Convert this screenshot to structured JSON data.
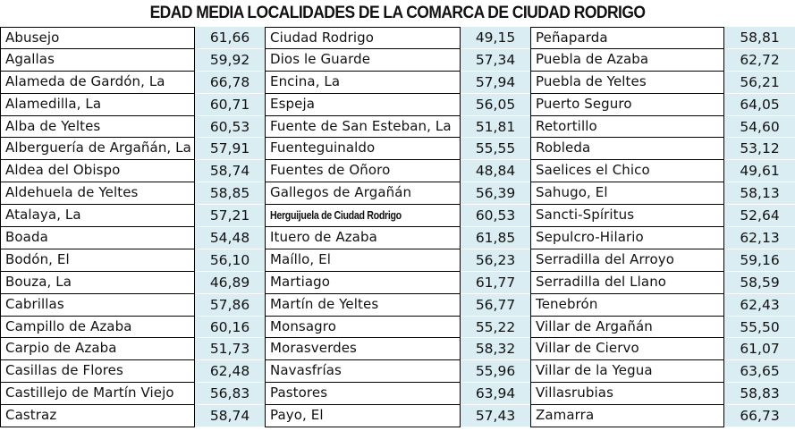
{
  "title": "EDAD MEDIA LOCALIDADES DE LA COMARCA DE CIUDAD RODRIGO",
  "columns": [
    {
      "rows": [
        {
          "name": "Abusejo",
          "value": "61,66"
        },
        {
          "name": "Agallas",
          "value": "59,92"
        },
        {
          "name": "Alameda de Gardón, La",
          "value": "66,78"
        },
        {
          "name": "Alamedilla, La",
          "value": "60,71"
        },
        {
          "name": "Alba de Yeltes",
          "value": "60,53"
        },
        {
          "name": "Alberguería de Argañán, La",
          "value": "57,91"
        },
        {
          "name": "Aldea del Obispo",
          "value": "58,74"
        },
        {
          "name": "Aldehuela de Yeltes",
          "value": "58,85"
        },
        {
          "name": "Atalaya, La",
          "value": "57,21"
        },
        {
          "name": "Boada",
          "value": "54,48"
        },
        {
          "name": "Bodón, El",
          "value": "56,10"
        },
        {
          "name": "Bouza, La",
          "value": "46,89"
        },
        {
          "name": "Cabrillas",
          "value": "57,86"
        },
        {
          "name": "Campillo de Azaba",
          "value": "60,16"
        },
        {
          "name": "Carpio de Azaba",
          "value": "51,73"
        },
        {
          "name": "Casillas de Flores",
          "value": "62,48"
        },
        {
          "name": "Castillejo de Martín Viejo",
          "value": "56,83"
        },
        {
          "name": "Castraz",
          "value": "58,74"
        }
      ]
    },
    {
      "rows": [
        {
          "name": "Ciudad Rodrigo",
          "value": "49,15"
        },
        {
          "name": "Dios le Guarde",
          "value": "57,34"
        },
        {
          "name": "Encina, La",
          "value": "57,94"
        },
        {
          "name": "Espeja",
          "value": "56,05"
        },
        {
          "name": "Fuente de San Esteban, La",
          "value": "51,81"
        },
        {
          "name": "Fuenteguinaldo",
          "value": "55,55"
        },
        {
          "name": "Fuentes de Oñoro",
          "value": "48,84"
        },
        {
          "name": "Gallegos de Argañán",
          "value": "56,39"
        },
        {
          "name": "Herguijuela de Ciudad Rodrigo",
          "value": "60,53"
        },
        {
          "name": "Ituero de Azaba",
          "value": "61,85"
        },
        {
          "name": "Maíllo, El",
          "value": "56,23"
        },
        {
          "name": "Martiago",
          "value": "61,77"
        },
        {
          "name": "Martín de Yeltes",
          "value": "56,77"
        },
        {
          "name": "Monsagro",
          "value": "55,22"
        },
        {
          "name": "Morasverdes",
          "value": "58,32"
        },
        {
          "name": "Navasfrías",
          "value": "55,96"
        },
        {
          "name": "Pastores",
          "value": "63,94"
        },
        {
          "name": "Payo, El",
          "value": "57,43"
        }
      ]
    },
    {
      "rows": [
        {
          "name": "Peñaparda",
          "value": "58,81"
        },
        {
          "name": "Puebla de Azaba",
          "value": "62,72"
        },
        {
          "name": "Puebla de Yeltes",
          "value": "56,21"
        },
        {
          "name": "Puerto Seguro",
          "value": "64,05"
        },
        {
          "name": "Retortillo",
          "value": "54,60"
        },
        {
          "name": "Robleda",
          "value": "53,12"
        },
        {
          "name": "Saelices el Chico",
          "value": "49,61"
        },
        {
          "name": "Sahugo, El",
          "value": "58,13"
        },
        {
          "name": "Sancti-Spíritus",
          "value": "52,64"
        },
        {
          "name": "Sepulcro-Hilario",
          "value": "62,13"
        },
        {
          "name": "Serradilla del Arroyo",
          "value": "59,16"
        },
        {
          "name": "Serradilla del Llano",
          "value": "58,59"
        },
        {
          "name": "Tenebrón",
          "value": "62,43"
        },
        {
          "name": "Villar de Argañán",
          "value": "55,50"
        },
        {
          "name": "Villar de Ciervo",
          "value": "61,07"
        },
        {
          "name": "Villar de la Yegua",
          "value": "63,65"
        },
        {
          "name": "Villasrubias",
          "value": "58,83"
        },
        {
          "name": "Zamarra",
          "value": "66,73"
        }
      ]
    }
  ],
  "colors": {
    "value_cell_bg": "#daedf3",
    "border": "#000000",
    "text": "#111111"
  }
}
